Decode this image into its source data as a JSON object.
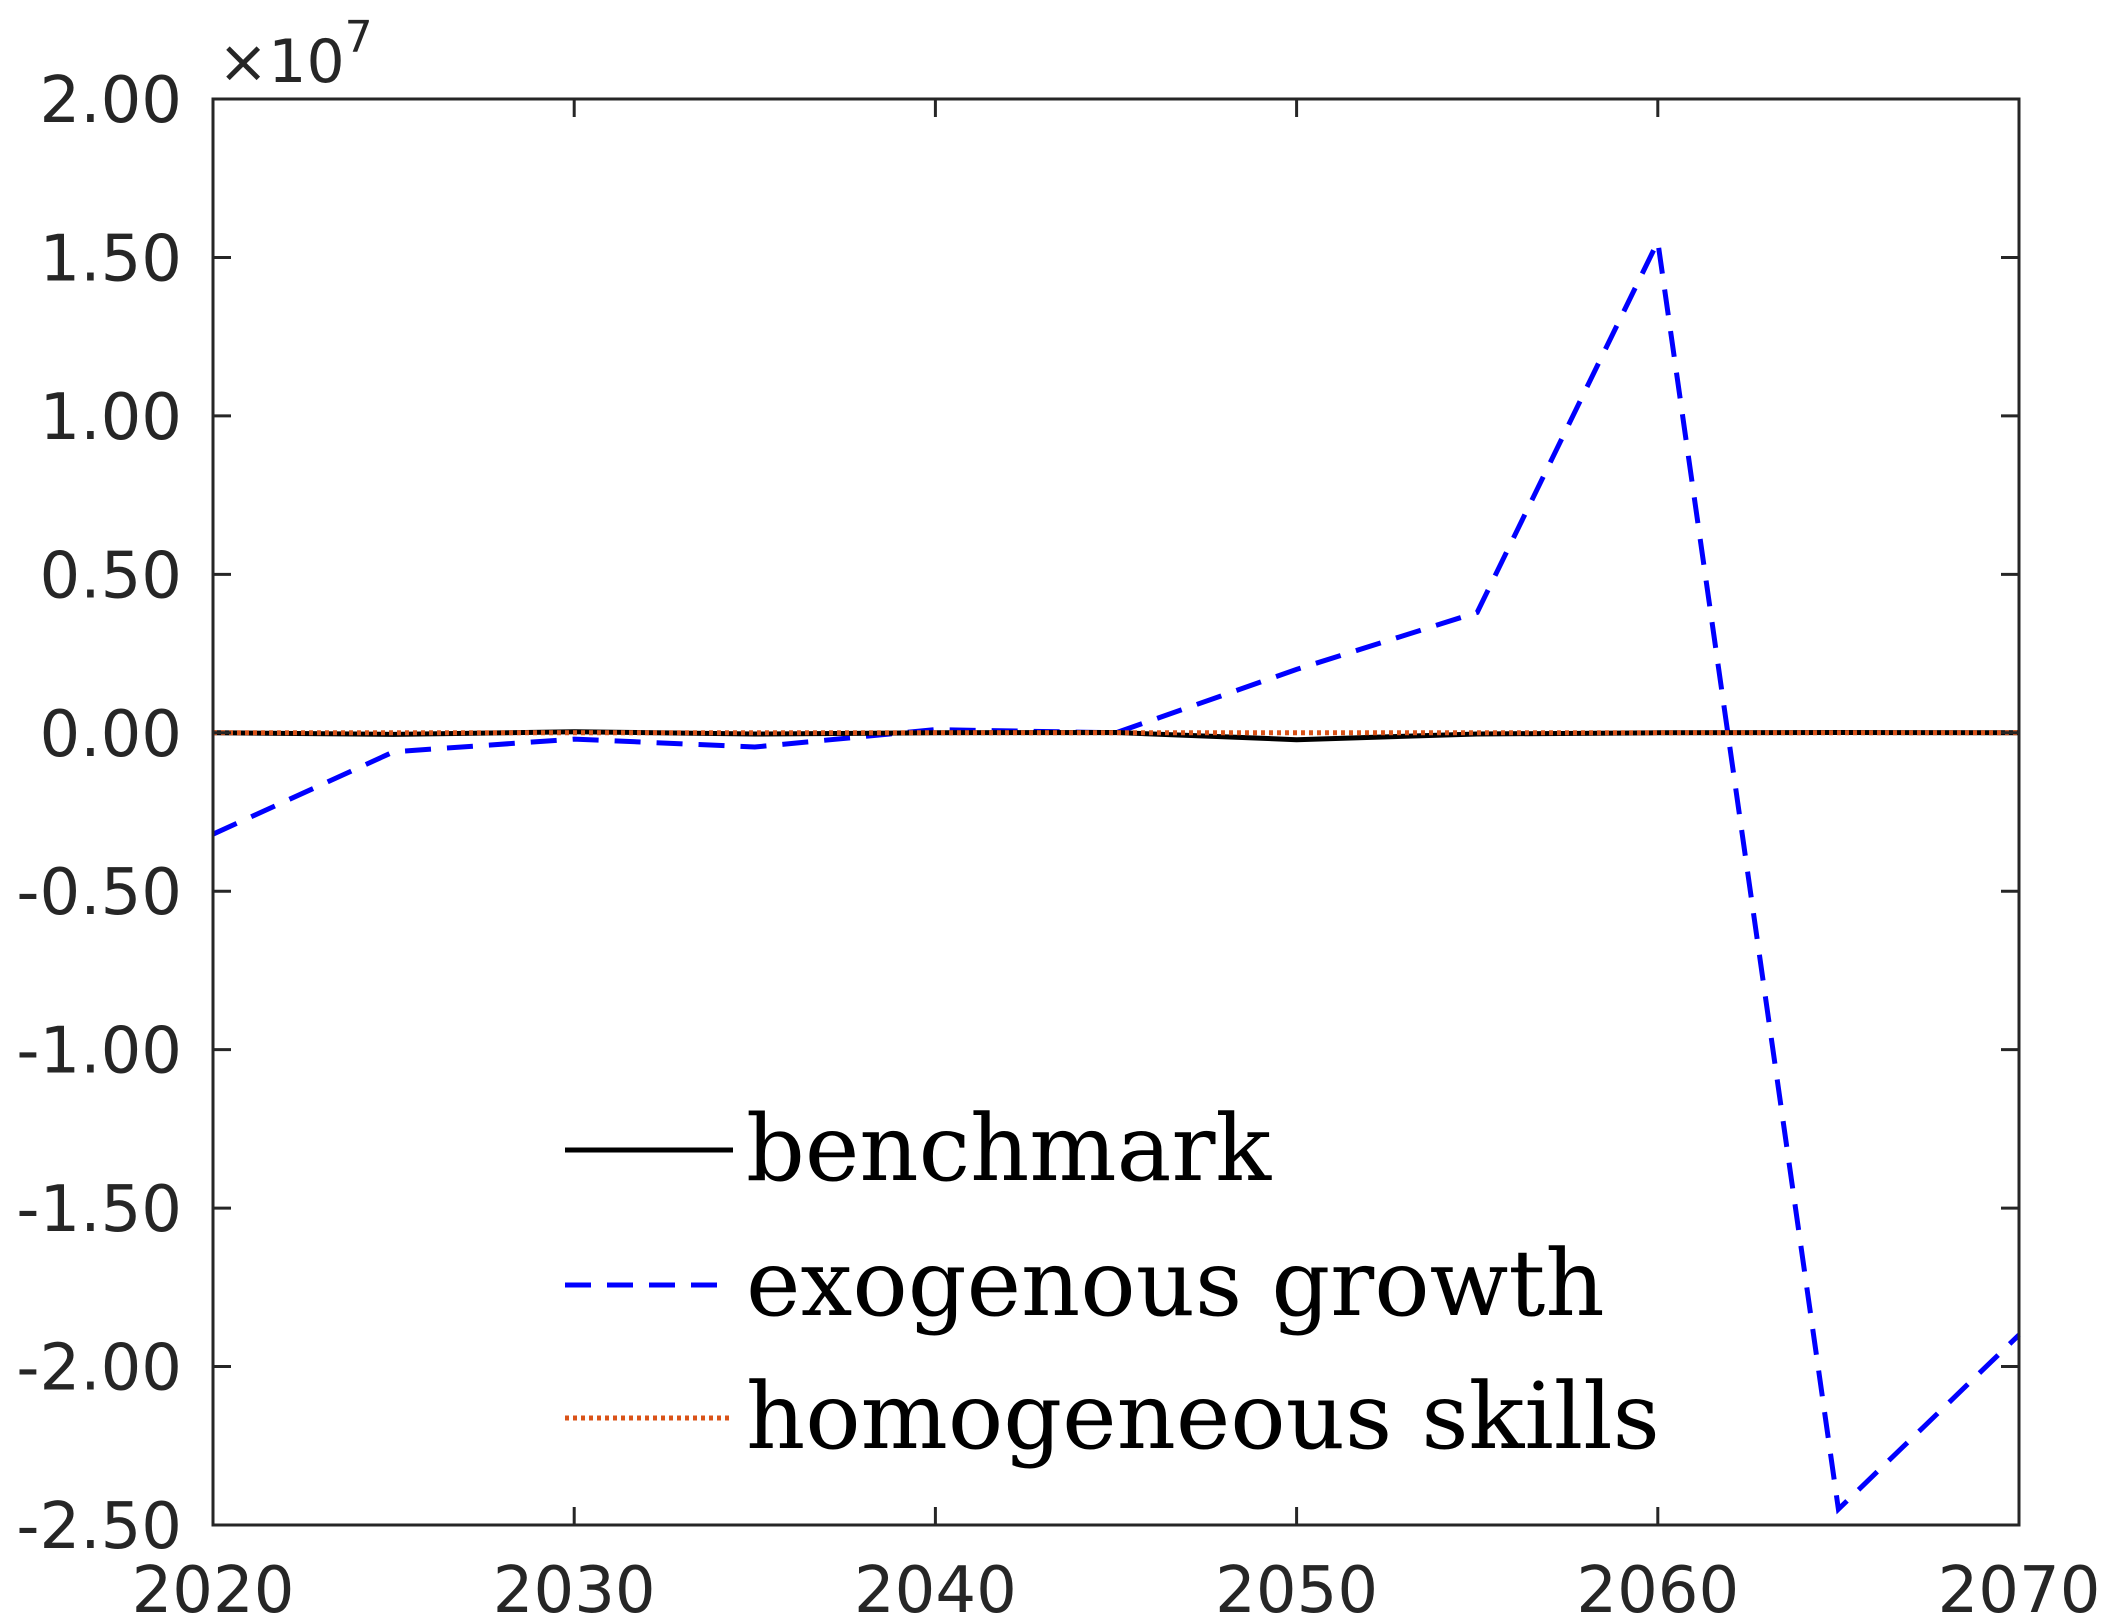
{
  "chart_data": {
    "type": "line",
    "title": "",
    "xlabel": "",
    "ylabel": "",
    "xlim": [
      2020,
      2070
    ],
    "ylim": [
      -2.5,
      2.0
    ],
    "y_exponent_label": {
      "base": "×10",
      "power": "7"
    },
    "xticks": [
      "2020",
      "2030",
      "2040",
      "2050",
      "2060",
      "2070"
    ],
    "yticks": [
      "2.00",
      "1.50",
      "1.00",
      "0.50",
      "0.00",
      "-0.50",
      "-1.00",
      "-1.50",
      "-2.00",
      "-2.50"
    ],
    "grid": false,
    "legend_position": "bottom-center",
    "x": [
      2020,
      2025,
      2030,
      2035,
      2040,
      2045,
      2050,
      2055,
      2060,
      2065,
      2070
    ],
    "series": [
      {
        "name": "benchmark",
        "color": "#000000",
        "style": "solid",
        "values": [
          0.0,
          -0.005,
          0.003,
          -0.004,
          0.0,
          0.001,
          -0.022,
          -0.004,
          0.0,
          0.001,
          0.0
        ]
      },
      {
        "name": "exogenous growth",
        "color": "#0000ff",
        "style": "dashed",
        "values": [
          -0.32,
          -0.06,
          -0.02,
          -0.045,
          0.01,
          0.0,
          0.2,
          0.38,
          1.55,
          -2.45,
          -1.9
        ]
      },
      {
        "name": "homogeneous skills",
        "color": "#d95319",
        "style": "dotted",
        "values": [
          0.0,
          0.0,
          0.0,
          0.0,
          0.0,
          0.0,
          0.0,
          0.0,
          0.0,
          0.0,
          0.0
        ]
      }
    ]
  }
}
